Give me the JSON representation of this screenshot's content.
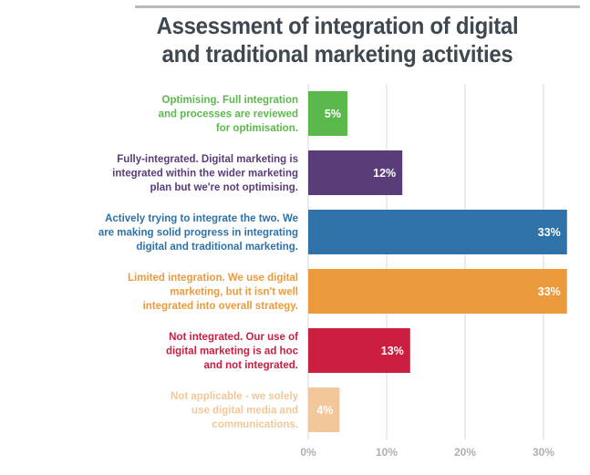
{
  "chart_data": {
    "type": "bar",
    "orientation": "horizontal",
    "title": [
      "Assessment of integration of digital",
      "and traditional marketing activities"
    ],
    "categories": [
      [
        "Optimising. Full integration",
        "and processes are reviewed",
        "for optimisation."
      ],
      [
        "Fully-integrated. Digital marketing is",
        "integrated within the wider marketing",
        "plan but we're not optimising."
      ],
      [
        "Actively trying to integrate the two. We",
        "are making solid progress in integrating",
        "digital and traditional marketing."
      ],
      [
        "Limited integration. We use digital",
        "marketing, but it isn't well",
        "integrated into overall strategy."
      ],
      [
        "Not integrated. Our use of",
        "digital marketing is ad hoc",
        "and not integrated."
      ],
      [
        "Not applicable - we solely",
        "use digital media and",
        "communications."
      ]
    ],
    "values": [
      5,
      12,
      33,
      33,
      13,
      4
    ],
    "value_labels": [
      "5%",
      "12%",
      "33%",
      "33%",
      "13%",
      "4%"
    ],
    "colors": [
      "#5bb84b",
      "#5a3c78",
      "#2e72a8",
      "#eb9a3c",
      "#cc1e3f",
      "#f2c79a"
    ],
    "x_ticks": [
      "0%",
      "10%",
      "20%",
      "30%"
    ],
    "xlim": [
      0,
      33
    ],
    "grid": true
  }
}
